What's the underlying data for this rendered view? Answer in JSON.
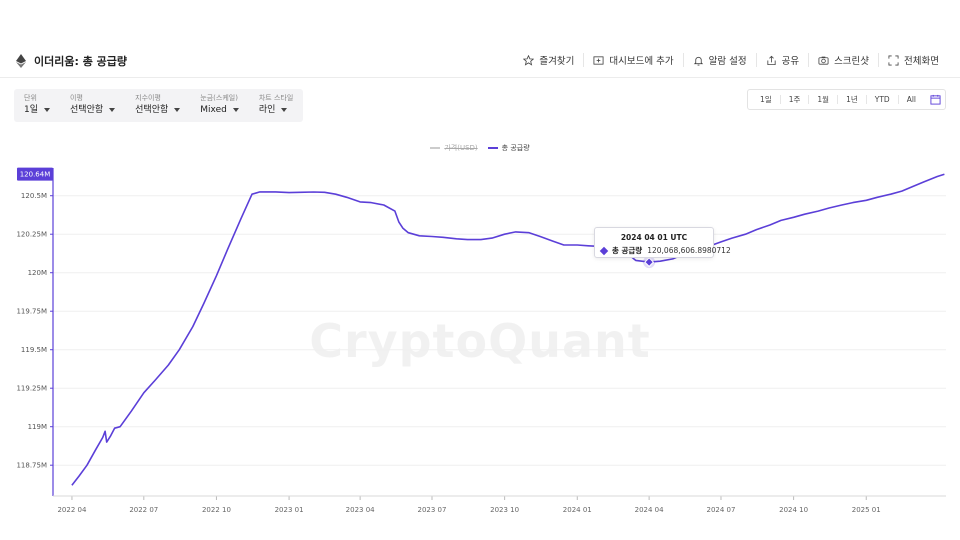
{
  "header": {
    "title": "이더리움: 총 공급량",
    "actions": [
      {
        "icon": "star-icon",
        "label": "즐겨찾기"
      },
      {
        "icon": "dashboard-add-icon",
        "label": "대시보드에 추가"
      },
      {
        "icon": "bell-icon",
        "label": "알람 설정"
      },
      {
        "icon": "share-icon",
        "label": "공유"
      },
      {
        "icon": "camera-icon",
        "label": "스크린샷"
      },
      {
        "icon": "fullscreen-icon",
        "label": "전체화면"
      }
    ]
  },
  "controls": [
    {
      "label": "단위",
      "value": "1일"
    },
    {
      "label": "이평",
      "value": "선택안함"
    },
    {
      "label": "지수이평",
      "value": "선택안함"
    },
    {
      "label": "눈금(스케일)",
      "value": "Mixed"
    },
    {
      "label": "차트 스타일",
      "value": "라인"
    }
  ],
  "ranges": [
    "1일",
    "1주",
    "1월",
    "1년",
    "YTD",
    "All"
  ],
  "colors": {
    "accent": "#5b3fd8",
    "price": "#cccccc"
  },
  "legend": [
    {
      "name": "가격(USD)",
      "color": "#cccccc",
      "active": false
    },
    {
      "name": "총 공급량",
      "color": "#5b3fd8",
      "active": true
    }
  ],
  "watermark": "CryptoQuant",
  "tooltip": {
    "date": "2024 04 01 UTC",
    "series": "총 공급량",
    "value": "120,068,606.8980712"
  },
  "chart_data": {
    "type": "line",
    "x_ticks": [
      "2022 04",
      "2022 07",
      "2022 10",
      "2023 01",
      "2023 04",
      "2023 07",
      "2023 10",
      "2024 01",
      "2024 04",
      "2024 07",
      "2024 10",
      "2025 01"
    ],
    "y_ticks": [
      "118.75M",
      "119M",
      "119.25M",
      "119.5M",
      "119.75M",
      "120M",
      "120.25M",
      "120.5M"
    ],
    "ylim": [
      118.55,
      120.68
    ],
    "current_value_label": "120.64M",
    "highlight": {
      "x": "2024-04-01",
      "y": 120.0686
    },
    "series": [
      {
        "name": "총 공급량",
        "points": [
          [
            "2022-04-01",
            118.62
          ],
          [
            "2022-04-10",
            118.68
          ],
          [
            "2022-04-20",
            118.75
          ],
          [
            "2022-05-01",
            118.85
          ],
          [
            "2022-05-10",
            118.93
          ],
          [
            "2022-05-13",
            118.97
          ],
          [
            "2022-05-15",
            118.9
          ],
          [
            "2022-05-20",
            118.94
          ],
          [
            "2022-05-25",
            118.99
          ],
          [
            "2022-06-01",
            119.0
          ],
          [
            "2022-06-15",
            119.1
          ],
          [
            "2022-07-01",
            119.22
          ],
          [
            "2022-07-15",
            119.3
          ],
          [
            "2022-08-01",
            119.4
          ],
          [
            "2022-08-15",
            119.5
          ],
          [
            "2022-09-01",
            119.65
          ],
          [
            "2022-09-15",
            119.8
          ],
          [
            "2022-10-01",
            119.98
          ],
          [
            "2022-10-15",
            120.15
          ],
          [
            "2022-11-01",
            120.35
          ],
          [
            "2022-11-15",
            120.51
          ],
          [
            "2022-11-25",
            120.525
          ],
          [
            "2022-12-15",
            120.525
          ],
          [
            "2023-01-01",
            120.52
          ],
          [
            "2023-01-15",
            120.522
          ],
          [
            "2023-02-01",
            120.524
          ],
          [
            "2023-02-15",
            120.522
          ],
          [
            "2023-03-01",
            120.51
          ],
          [
            "2023-03-15",
            120.49
          ],
          [
            "2023-04-01",
            120.46
          ],
          [
            "2023-04-15",
            120.455
          ],
          [
            "2023-05-01",
            120.44
          ],
          [
            "2023-05-15",
            120.4
          ],
          [
            "2023-05-20",
            120.33
          ],
          [
            "2023-05-25",
            120.29
          ],
          [
            "2023-06-01",
            120.26
          ],
          [
            "2023-06-15",
            120.24
          ],
          [
            "2023-07-01",
            120.235
          ],
          [
            "2023-07-15",
            120.23
          ],
          [
            "2023-08-01",
            120.22
          ],
          [
            "2023-08-15",
            120.215
          ],
          [
            "2023-09-01",
            120.215
          ],
          [
            "2023-09-15",
            120.225
          ],
          [
            "2023-10-01",
            120.25
          ],
          [
            "2023-10-15",
            120.265
          ],
          [
            "2023-11-01",
            120.26
          ],
          [
            "2023-11-15",
            120.235
          ],
          [
            "2023-12-01",
            120.205
          ],
          [
            "2023-12-15",
            120.18
          ],
          [
            "2024-01-01",
            120.18
          ],
          [
            "2024-01-15",
            120.175
          ],
          [
            "2024-02-01",
            120.17
          ],
          [
            "2024-02-15",
            120.165
          ],
          [
            "2024-03-01",
            120.14
          ],
          [
            "2024-03-15",
            120.08
          ],
          [
            "2024-04-01",
            120.0686
          ],
          [
            "2024-04-15",
            120.075
          ],
          [
            "2024-05-01",
            120.09
          ],
          [
            "2024-05-15",
            120.12
          ],
          [
            "2024-06-01",
            120.145
          ],
          [
            "2024-06-15",
            120.17
          ],
          [
            "2024-07-01",
            120.2
          ],
          [
            "2024-07-15",
            120.225
          ],
          [
            "2024-08-01",
            120.25
          ],
          [
            "2024-08-15",
            120.28
          ],
          [
            "2024-09-01",
            120.31
          ],
          [
            "2024-09-15",
            120.34
          ],
          [
            "2024-10-01",
            120.36
          ],
          [
            "2024-10-15",
            120.38
          ],
          [
            "2024-11-01",
            120.4
          ],
          [
            "2024-11-15",
            120.42
          ],
          [
            "2024-12-01",
            120.44
          ],
          [
            "2024-12-15",
            120.455
          ],
          [
            "2025-01-01",
            120.47
          ],
          [
            "2025-01-15",
            120.49
          ],
          [
            "2025-02-01",
            120.51
          ],
          [
            "2025-02-15",
            120.53
          ],
          [
            "2025-03-01",
            120.56
          ],
          [
            "2025-03-15",
            120.59
          ],
          [
            "2025-04-01",
            120.625
          ],
          [
            "2025-04-10",
            120.64
          ]
        ]
      }
    ]
  }
}
